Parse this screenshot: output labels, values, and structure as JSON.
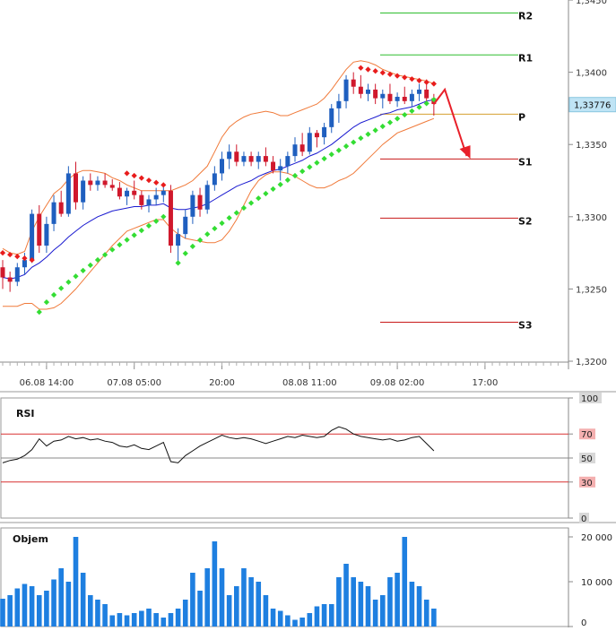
{
  "chart_data": [
    {
      "type": "candlestick",
      "ylim": [
        1.32,
        1.345
      ],
      "y_ticks": [
        "1,3200",
        "1,3250",
        "1,3300",
        "1,3350",
        "1,3400",
        "1,3450"
      ],
      "x_ticks": [
        "06.08 14:00",
        "07.08 05:00",
        "20:00",
        "08.08 11:00",
        "09.08 02:00",
        "17:00"
      ],
      "current_price": "1,33776",
      "colors": {
        "up": "#1f5fbf",
        "down": "#d0182c",
        "ma": "#1a1ad0",
        "bands": "#f07a3a",
        "sar_up": "#33dd33",
        "sar_down": "#e81c1c",
        "arrow": "#e8202a"
      },
      "candles": [
        [
          1.3265,
          1.327,
          1.325,
          1.3258
        ],
        [
          1.3258,
          1.3262,
          1.3248,
          1.3255
        ],
        [
          1.3255,
          1.3268,
          1.3252,
          1.3265
        ],
        [
          1.3265,
          1.3275,
          1.326,
          1.327
        ],
        [
          1.327,
          1.3305,
          1.3268,
          1.3302
        ],
        [
          1.3302,
          1.3308,
          1.3275,
          1.328
        ],
        [
          1.328,
          1.33,
          1.3275,
          1.3295
        ],
        [
          1.3295,
          1.3315,
          1.329,
          1.331
        ],
        [
          1.331,
          1.3318,
          1.33,
          1.3302
        ],
        [
          1.3302,
          1.3335,
          1.33,
          1.333
        ],
        [
          1.333,
          1.3338,
          1.3305,
          1.331
        ],
        [
          1.331,
          1.3328,
          1.3305,
          1.3325
        ],
        [
          1.3325,
          1.333,
          1.3318,
          1.3322
        ],
        [
          1.3322,
          1.3328,
          1.3318,
          1.3325
        ],
        [
          1.3325,
          1.333,
          1.332,
          1.3322
        ],
        [
          1.3322,
          1.3326,
          1.3318,
          1.332
        ],
        [
          1.332,
          1.3324,
          1.3312,
          1.3314
        ],
        [
          1.3314,
          1.332,
          1.3308,
          1.3318
        ],
        [
          1.3318,
          1.3325,
          1.3312,
          1.3315
        ],
        [
          1.3315,
          1.3318,
          1.3305,
          1.3308
        ],
        [
          1.3308,
          1.3315,
          1.3303,
          1.3312
        ],
        [
          1.3312,
          1.332,
          1.3308,
          1.3315
        ],
        [
          1.3315,
          1.3322,
          1.331,
          1.3318
        ],
        [
          1.3318,
          1.3322,
          1.3275,
          1.328
        ],
        [
          1.328,
          1.3292,
          1.3268,
          1.3288
        ],
        [
          1.3288,
          1.3305,
          1.3285,
          1.33
        ],
        [
          1.33,
          1.3318,
          1.3295,
          1.3315
        ],
        [
          1.3315,
          1.332,
          1.33,
          1.3305
        ],
        [
          1.3305,
          1.3325,
          1.3302,
          1.3322
        ],
        [
          1.3322,
          1.3335,
          1.3318,
          1.333
        ],
        [
          1.333,
          1.3345,
          1.3325,
          1.334
        ],
        [
          1.334,
          1.335,
          1.3333,
          1.3345
        ],
        [
          1.3345,
          1.335,
          1.3335,
          1.3338
        ],
        [
          1.3338,
          1.3345,
          1.3335,
          1.3342
        ],
        [
          1.3342,
          1.3345,
          1.3335,
          1.3338
        ],
        [
          1.3338,
          1.3345,
          1.3333,
          1.3342
        ],
        [
          1.3342,
          1.3348,
          1.3335,
          1.3338
        ],
        [
          1.3338,
          1.3342,
          1.333,
          1.3332
        ],
        [
          1.3332,
          1.334,
          1.3325,
          1.3335
        ],
        [
          1.3335,
          1.3345,
          1.333,
          1.3342
        ],
        [
          1.3342,
          1.3355,
          1.3338,
          1.335
        ],
        [
          1.335,
          1.3358,
          1.3342,
          1.3345
        ],
        [
          1.3345,
          1.3362,
          1.3343,
          1.3358
        ],
        [
          1.3358,
          1.336,
          1.3348,
          1.3355
        ],
        [
          1.3355,
          1.3365,
          1.335,
          1.3362
        ],
        [
          1.3362,
          1.3378,
          1.3358,
          1.3375
        ],
        [
          1.3375,
          1.3385,
          1.3365,
          1.338
        ],
        [
          1.338,
          1.3398,
          1.3375,
          1.3395
        ],
        [
          1.3395,
          1.34,
          1.3385,
          1.339
        ],
        [
          1.339,
          1.3398,
          1.3382,
          1.3385
        ],
        [
          1.3385,
          1.3392,
          1.338,
          1.3388
        ],
        [
          1.3388,
          1.3392,
          1.3378,
          1.3382
        ],
        [
          1.3382,
          1.3388,
          1.3375,
          1.3385
        ],
        [
          1.3385,
          1.3392,
          1.3378,
          1.338
        ],
        [
          1.338,
          1.3386,
          1.3376,
          1.3383
        ],
        [
          1.3383,
          1.339,
          1.3378,
          1.338
        ],
        [
          1.338,
          1.3388,
          1.3376,
          1.3385
        ],
        [
          1.3385,
          1.3392,
          1.338,
          1.3388
        ],
        [
          1.3388,
          1.3395,
          1.338,
          1.3382
        ],
        [
          1.3382,
          1.3385,
          1.337,
          1.3378
        ]
      ],
      "pivots": [
        {
          "label": "R2",
          "value": 1.3441,
          "color": "#2ebd2e"
        },
        {
          "label": "R1",
          "value": 1.3412,
          "color": "#2ebd2e"
        },
        {
          "label": "P",
          "value": 1.3371,
          "color": "#d4a030"
        },
        {
          "label": "S1",
          "value": 1.334,
          "color": "#c81818"
        },
        {
          "label": "S2",
          "value": 1.3299,
          "color": "#c81818"
        },
        {
          "label": "S3",
          "value": 1.3227,
          "color": "#c81818"
        }
      ],
      "ma": [
        1.3258,
        1.3257,
        1.3258,
        1.326,
        1.3265,
        1.3268,
        1.3272,
        1.3277,
        1.3281,
        1.3286,
        1.329,
        1.3294,
        1.3297,
        1.33,
        1.3302,
        1.3304,
        1.3305,
        1.3306,
        1.3307,
        1.3307,
        1.3308,
        1.3308,
        1.3309,
        1.3306,
        1.3305,
        1.3305,
        1.3306,
        1.3307,
        1.3309,
        1.3312,
        1.3315,
        1.3318,
        1.3321,
        1.3323,
        1.3325,
        1.3328,
        1.333,
        1.3332,
        1.3333,
        1.3335,
        1.3337,
        1.3339,
        1.3342,
        1.3344,
        1.3347,
        1.335,
        1.3354,
        1.3358,
        1.3362,
        1.3365,
        1.3367,
        1.3369,
        1.3371,
        1.3372,
        1.3374,
        1.3375,
        1.3376,
        1.3378,
        1.338,
        1.3381
      ],
      "band_upper": [
        1.3278,
        1.3275,
        1.3274,
        1.3276,
        1.329,
        1.33,
        1.3308,
        1.3316,
        1.332,
        1.3326,
        1.333,
        1.3332,
        1.3332,
        1.3331,
        1.333,
        1.3327,
        1.3325,
        1.3322,
        1.332,
        1.3318,
        1.3318,
        1.3318,
        1.3318,
        1.3318,
        1.332,
        1.3322,
        1.3325,
        1.333,
        1.3335,
        1.3345,
        1.3355,
        1.3362,
        1.3366,
        1.3369,
        1.3371,
        1.3372,
        1.3373,
        1.3372,
        1.337,
        1.337,
        1.3372,
        1.3374,
        1.3376,
        1.3378,
        1.3382,
        1.3388,
        1.3395,
        1.3402,
        1.3407,
        1.3408,
        1.3407,
        1.3405,
        1.3402,
        1.34,
        1.3398,
        1.3397,
        1.3396,
        1.3395,
        1.3394,
        1.3392
      ],
      "band_lower": [
        1.3238,
        1.3238,
        1.3238,
        1.324,
        1.324,
        1.3236,
        1.3236,
        1.3237,
        1.324,
        1.3245,
        1.325,
        1.3256,
        1.3262,
        1.3268,
        1.3274,
        1.328,
        1.3285,
        1.329,
        1.3292,
        1.3294,
        1.3296,
        1.3298,
        1.3298,
        1.3292,
        1.3288,
        1.3285,
        1.3284,
        1.3283,
        1.3282,
        1.3282,
        1.3284,
        1.329,
        1.3298,
        1.3308,
        1.3318,
        1.3325,
        1.3329,
        1.3331,
        1.3331,
        1.333,
        1.3328,
        1.3325,
        1.3322,
        1.332,
        1.332,
        1.3322,
        1.3325,
        1.3327,
        1.333,
        1.3335,
        1.334,
        1.3345,
        1.335,
        1.3354,
        1.3358,
        1.336,
        1.3362,
        1.3364,
        1.3366,
        1.3368
      ],
      "sar": [
        {
          "from": 0,
          "to": 4,
          "side": "down",
          "start": 1.3275,
          "end": 1.327
        },
        {
          "from": 5,
          "to": 22,
          "side": "up",
          "start": 1.3234,
          "end": 1.33
        },
        {
          "from": 17,
          "to": 22,
          "side": "down",
          "start": 1.333,
          "end": 1.3322
        },
        {
          "from": 24,
          "to": 59,
          "side": "up",
          "start": 1.3268,
          "end": 1.3381
        },
        {
          "from": 49,
          "to": 59,
          "side": "down",
          "start": 1.3403,
          "end": 1.3392
        }
      ],
      "forecast_arrow": [
        [
          59,
          1.3378
        ],
        [
          60.5,
          1.3388
        ],
        [
          63.5,
          1.3342
        ]
      ]
    },
    {
      "type": "line",
      "title": "RSI",
      "ylim": [
        0,
        100
      ],
      "y_ticks": [
        "100",
        "70",
        "50",
        "30",
        "0"
      ],
      "levels": [
        70,
        50,
        30
      ],
      "values": [
        46,
        48,
        49,
        52,
        57,
        66,
        60,
        64,
        65,
        68,
        66,
        67,
        65,
        66,
        64,
        63,
        60,
        59,
        61,
        58,
        57,
        60,
        63,
        47,
        46,
        52,
        56,
        60,
        63,
        66,
        69,
        67,
        66,
        67,
        66,
        64,
        62,
        64,
        66,
        68,
        67,
        69,
        68,
        67,
        68,
        73,
        76,
        74,
        70,
        68,
        67,
        66,
        65,
        66,
        64,
        65,
        67,
        68,
        62,
        56
      ]
    },
    {
      "type": "bar",
      "title": "Objem",
      "ylim": [
        0,
        22000
      ],
      "y_ticks": [
        "20 000",
        "10 000",
        "0"
      ],
      "values": [
        6200,
        7000,
        8500,
        9500,
        9000,
        7000,
        8000,
        10500,
        13000,
        10000,
        20000,
        12000,
        7000,
        6000,
        5000,
        2500,
        3000,
        2500,
        3000,
        3500,
        4000,
        3000,
        2000,
        3000,
        4000,
        6000,
        12000,
        8000,
        13000,
        19000,
        13000,
        7000,
        9000,
        13000,
        11000,
        10000,
        7000,
        4000,
        3500,
        2500,
        1500,
        2000,
        3000,
        4500,
        5000,
        5000,
        11000,
        14000,
        11000,
        10000,
        9000,
        6000,
        7000,
        11000,
        12000,
        20000,
        10000,
        9000,
        6000,
        4000
      ]
    }
  ]
}
